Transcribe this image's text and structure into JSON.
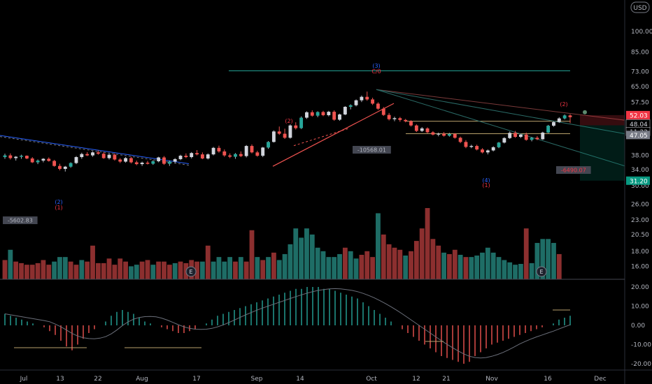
{
  "chart_data": [
    {
      "type": "candlestick",
      "currency": "USD",
      "x_ticks": [
        "Jul",
        "13",
        "22",
        "Aug",
        "17",
        "Sep",
        "14",
        "Oct",
        "12",
        "21",
        "Nov",
        "16",
        "Dec"
      ],
      "y_ticks": [
        "100.00",
        "85.00",
        "73.00",
        "65.00",
        "57.50",
        "48.04",
        "38.00",
        "34.00",
        "30.00",
        "26.00",
        "23.00",
        "20.50",
        "18.00",
        "16.00"
      ],
      "scale": "log",
      "price_labels": [
        {
          "text": "52.03",
          "color": "#f23645"
        },
        {
          "text": "48.04",
          "color": "#d1d4dc"
        },
        {
          "text": "11:22",
          "color": "#d1d4dc"
        },
        {
          "text": "47.05",
          "color": "#787b86"
        },
        {
          "text": "31.20",
          "color": "#089981"
        }
      ],
      "annotations": [
        {
          "text": "(2)",
          "color": "#2962ff"
        },
        {
          "text": "(1)",
          "color": "#f23645"
        },
        {
          "text": "(2)",
          "color": "#f23645"
        },
        {
          "text": "(3)",
          "color": "#2962ff"
        },
        {
          "text": "C/0",
          "color": "#f23645"
        },
        {
          "text": "(4)",
          "color": "#2962ff"
        },
        {
          "text": "(1)",
          "color": "#f23645"
        },
        {
          "text": "(2)",
          "color": "#f23645"
        }
      ],
      "measure_labels": [
        "-5602.83",
        "-10568.01",
        "-6490.07"
      ],
      "earnings_markers": [
        "E",
        "E"
      ],
      "candles": [
        [
          37.5,
          38.5,
          37.0,
          38.0
        ],
        [
          38.0,
          38.6,
          36.8,
          37.2
        ],
        [
          37.2,
          37.8,
          36.5,
          37.6
        ],
        [
          37.6,
          38.2,
          37.0,
          37.9
        ],
        [
          37.9,
          38.0,
          36.9,
          37.1
        ],
        [
          37.1,
          37.5,
          35.8,
          36.0
        ],
        [
          36.0,
          36.8,
          35.5,
          36.5
        ],
        [
          36.5,
          37.2,
          36.0,
          37.0
        ],
        [
          37.0,
          37.4,
          36.2,
          36.4
        ],
        [
          36.4,
          36.7,
          34.8,
          35.0
        ],
        [
          35.0,
          35.6,
          33.8,
          34.2
        ],
        [
          34.2,
          35.0,
          33.5,
          34.8
        ],
        [
          34.8,
          36.0,
          34.5,
          35.8
        ],
        [
          35.8,
          37.8,
          35.5,
          37.5
        ],
        [
          37.5,
          38.8,
          37.0,
          38.4
        ],
        [
          38.4,
          39.0,
          37.8,
          38.0
        ],
        [
          38.0,
          39.2,
          37.6,
          38.9
        ],
        [
          38.9,
          39.5,
          38.2,
          38.5
        ],
        [
          38.5,
          39.0,
          37.0,
          37.2
        ],
        [
          37.2,
          38.5,
          36.8,
          38.2
        ],
        [
          38.2,
          38.6,
          36.5,
          36.8
        ],
        [
          36.8,
          37.2,
          35.8,
          36.2
        ],
        [
          36.2,
          37.5,
          35.9,
          37.2
        ],
        [
          37.2,
          37.6,
          35.7,
          36.0
        ],
        [
          36.0,
          36.5,
          35.2,
          35.5
        ],
        [
          35.5,
          36.2,
          35.0,
          35.9
        ],
        [
          35.9,
          36.4,
          35.4,
          35.6
        ],
        [
          35.6,
          36.6,
          35.3,
          36.3
        ],
        [
          36.3,
          37.6,
          36.0,
          37.4
        ],
        [
          37.4,
          37.8,
          35.3,
          35.6
        ],
        [
          35.6,
          36.5,
          35.0,
          36.2
        ],
        [
          36.2,
          37.2,
          35.8,
          36.9
        ],
        [
          36.9,
          38.2,
          36.6,
          37.9
        ],
        [
          37.9,
          38.6,
          37.2,
          37.5
        ],
        [
          37.5,
          39.0,
          37.1,
          38.7
        ],
        [
          38.7,
          39.6,
          38.0,
          38.3
        ],
        [
          38.3,
          38.9,
          36.9,
          37.1
        ],
        [
          37.1,
          38.6,
          36.8,
          38.3
        ],
        [
          38.3,
          40.6,
          38.0,
          40.3
        ],
        [
          40.3,
          41.0,
          38.8,
          39.2
        ],
        [
          39.2,
          39.8,
          37.6,
          38.0
        ],
        [
          38.0,
          38.6,
          37.2,
          37.6
        ],
        [
          37.6,
          38.7,
          37.0,
          38.4
        ],
        [
          38.4,
          39.2,
          37.5,
          37.8
        ],
        [
          37.8,
          41.2,
          37.4,
          40.9
        ],
        [
          40.9,
          41.4,
          38.6,
          38.9
        ],
        [
          38.9,
          39.4,
          37.6,
          37.9
        ],
        [
          37.9,
          40.6,
          37.5,
          40.4
        ],
        [
          40.4,
          42.5,
          40.0,
          42.2
        ],
        [
          42.2,
          46.2,
          42.0,
          45.8
        ],
        [
          45.8,
          47.6,
          44.6,
          45.0
        ],
        [
          45.0,
          46.8,
          43.2,
          43.6
        ],
        [
          43.6,
          48.4,
          43.3,
          48.0
        ],
        [
          48.0,
          49.2,
          46.5,
          47.0
        ],
        [
          47.0,
          51.5,
          46.7,
          51.0
        ],
        [
          51.0,
          53.6,
          50.5,
          53.2
        ],
        [
          53.2,
          54.0,
          51.4,
          51.8
        ],
        [
          51.8,
          53.6,
          51.2,
          53.3
        ],
        [
          53.3,
          53.8,
          51.6,
          52.0
        ],
        [
          52.0,
          53.8,
          51.5,
          53.4
        ],
        [
          53.4,
          54.0,
          49.8,
          50.2
        ],
        [
          50.2,
          52.6,
          49.8,
          52.3
        ],
        [
          52.3,
          55.8,
          52.0,
          55.5
        ],
        [
          55.5,
          56.6,
          54.4,
          56.2
        ],
        [
          56.2,
          58.8,
          55.7,
          58.4
        ],
        [
          58.4,
          60.6,
          57.6,
          60.0
        ],
        [
          60.0,
          62.5,
          58.2,
          58.8
        ],
        [
          58.8,
          59.6,
          56.3,
          56.9
        ],
        [
          56.9,
          57.5,
          54.2,
          54.7
        ],
        [
          54.7,
          55.4,
          51.7,
          52.1
        ],
        [
          52.1,
          52.9,
          49.9,
          50.4
        ],
        [
          50.4,
          51.4,
          49.6,
          50.8
        ],
        [
          50.8,
          51.3,
          49.4,
          50.1
        ],
        [
          50.1,
          50.5,
          49.2,
          49.6
        ],
        [
          49.6,
          50.0,
          47.6,
          48.0
        ],
        [
          48.0,
          48.4,
          45.6,
          46.0
        ],
        [
          46.0,
          47.4,
          45.6,
          46.9
        ],
        [
          46.9,
          47.3,
          45.2,
          45.5
        ],
        [
          45.5,
          45.9,
          44.4,
          44.7
        ],
        [
          44.7,
          45.4,
          44.1,
          45.0
        ],
        [
          45.0,
          45.6,
          44.0,
          44.3
        ],
        [
          44.3,
          45.3,
          44.0,
          44.9
        ],
        [
          44.9,
          45.2,
          43.3,
          43.6
        ],
        [
          43.6,
          44.0,
          41.8,
          42.2
        ],
        [
          42.2,
          42.8,
          40.2,
          40.6
        ],
        [
          40.6,
          41.3,
          40.2,
          40.9
        ],
        [
          40.9,
          41.3,
          39.5,
          39.8
        ],
        [
          39.8,
          40.2,
          38.6,
          38.9
        ],
        [
          38.9,
          39.8,
          38.3,
          39.5
        ],
        [
          39.5,
          40.8,
          39.2,
          40.5
        ],
        [
          40.5,
          42.2,
          40.2,
          42.0
        ],
        [
          42.0,
          43.8,
          41.7,
          43.5
        ],
        [
          43.5,
          45.8,
          43.2,
          45.3
        ],
        [
          45.3,
          46.0,
          43.6,
          43.9
        ],
        [
          43.9,
          45.0,
          43.5,
          44.7
        ],
        [
          44.7,
          45.4,
          42.6,
          42.9
        ],
        [
          42.9,
          43.9,
          42.4,
          43.6
        ],
        [
          43.6,
          44.2,
          42.8,
          43.1
        ],
        [
          43.1,
          45.7,
          42.9,
          45.4
        ],
        [
          45.4,
          48.2,
          45.2,
          47.9
        ],
        [
          47.9,
          49.6,
          47.5,
          49.3
        ],
        [
          49.3,
          51.2,
          49.0,
          50.7
        ],
        [
          50.7,
          52.3,
          50.3,
          51.9
        ],
        [
          51.9,
          52.4,
          48.9,
          51.2
        ]
      ],
      "volume": [
        [
          16.8,
          "r"
        ],
        [
          18.2,
          "g"
        ],
        [
          16.6,
          "r"
        ],
        [
          16.4,
          "r"
        ],
        [
          16.2,
          "r"
        ],
        [
          16.2,
          "r"
        ],
        [
          16.4,
          "r"
        ],
        [
          16.8,
          "r"
        ],
        [
          16.2,
          "r"
        ],
        [
          16.6,
          "g"
        ],
        [
          17.2,
          "g"
        ],
        [
          17.2,
          "g"
        ],
        [
          16.6,
          "r"
        ],
        [
          16.2,
          "r"
        ],
        [
          16.8,
          "g"
        ],
        [
          16.6,
          "r"
        ],
        [
          18.8,
          "r"
        ],
        [
          16.4,
          "r"
        ],
        [
          16.4,
          "r"
        ],
        [
          17.0,
          "r"
        ],
        [
          16.2,
          "r"
        ],
        [
          17.0,
          "r"
        ],
        [
          16.6,
          "r"
        ],
        [
          16.0,
          "g"
        ],
        [
          16.2,
          "g"
        ],
        [
          16.6,
          "r"
        ],
        [
          16.8,
          "r"
        ],
        [
          16.2,
          "g"
        ],
        [
          16.6,
          "r"
        ],
        [
          16.6,
          "r"
        ],
        [
          16.2,
          "r"
        ],
        [
          16.4,
          "g"
        ],
        [
          16.6,
          "r"
        ],
        [
          16.4,
          "r"
        ],
        [
          16.8,
          "r"
        ],
        [
          16.6,
          "r"
        ],
        [
          16.6,
          "g"
        ],
        [
          18.8,
          "r"
        ],
        [
          16.6,
          "g"
        ],
        [
          17.2,
          "g"
        ],
        [
          16.6,
          "g"
        ],
        [
          17.2,
          "g"
        ],
        [
          16.6,
          "r"
        ],
        [
          17.2,
          "g"
        ],
        [
          16.6,
          "r"
        ],
        [
          21.2,
          "r"
        ],
        [
          17.2,
          "g"
        ],
        [
          16.8,
          "r"
        ],
        [
          17.2,
          "g"
        ],
        [
          17.8,
          "r"
        ],
        [
          16.8,
          "g"
        ],
        [
          17.6,
          "g"
        ],
        [
          19.0,
          "g"
        ],
        [
          21.5,
          "g"
        ],
        [
          20.0,
          "g"
        ],
        [
          21.5,
          "g"
        ],
        [
          20.5,
          "g"
        ],
        [
          18.5,
          "g"
        ],
        [
          18.0,
          "g"
        ],
        [
          17.2,
          "g"
        ],
        [
          17.2,
          "g"
        ],
        [
          17.6,
          "g"
        ],
        [
          18.5,
          "r"
        ],
        [
          18.0,
          "g"
        ],
        [
          17.0,
          "g"
        ],
        [
          17.5,
          "r"
        ],
        [
          18.0,
          "r"
        ],
        [
          17.2,
          "r"
        ],
        [
          24.2,
          "g"
        ],
        [
          20.5,
          "r"
        ],
        [
          19.0,
          "r"
        ],
        [
          18.5,
          "r"
        ],
        [
          18.2,
          "r"
        ],
        [
          17.4,
          "g"
        ],
        [
          18.0,
          "r"
        ],
        [
          19.5,
          "r"
        ],
        [
          21.5,
          "r"
        ],
        [
          25.2,
          "r"
        ],
        [
          19.8,
          "r"
        ],
        [
          18.8,
          "r"
        ],
        [
          17.8,
          "g"
        ],
        [
          17.6,
          "r"
        ],
        [
          18.2,
          "r"
        ],
        [
          17.5,
          "g"
        ],
        [
          17.2,
          "r"
        ],
        [
          17.2,
          "g"
        ],
        [
          17.4,
          "g"
        ],
        [
          17.8,
          "g"
        ],
        [
          18.5,
          "g"
        ],
        [
          17.8,
          "g"
        ],
        [
          17.2,
          "g"
        ],
        [
          16.8,
          "g"
        ],
        [
          16.5,
          "g"
        ],
        [
          16.2,
          "g"
        ],
        [
          16.3,
          "g"
        ],
        [
          21.5,
          "r"
        ],
        [
          16.4,
          "g"
        ],
        [
          19.2,
          "g"
        ],
        [
          19.8,
          "g"
        ],
        [
          19.8,
          "g"
        ],
        [
          19.2,
          "g"
        ],
        [
          17.6,
          "r"
        ]
      ],
      "histogram": [
        6,
        5,
        4,
        3,
        2,
        1,
        0,
        -1,
        -3,
        -5,
        -8,
        -11,
        -13,
        -10,
        -7,
        -4,
        -2,
        0,
        2,
        5,
        7,
        8,
        7,
        6,
        4,
        2,
        1,
        0,
        -1,
        -2,
        -3,
        -4,
        -4,
        -3,
        -2,
        0,
        1,
        3,
        5,
        6,
        7,
        8,
        9,
        10,
        11,
        12,
        13,
        14,
        15,
        16,
        17,
        18,
        19,
        19,
        20,
        20,
        20,
        19,
        19,
        18,
        17,
        16,
        15,
        14,
        12,
        10,
        8,
        6,
        4,
        2,
        0,
        -2,
        -4,
        -6,
        -8,
        -10,
        -12,
        -14,
        -16,
        -17,
        -18,
        -19,
        -20,
        -19,
        -16,
        -14,
        -12,
        -10,
        -9,
        -8,
        -7,
        -6,
        -5,
        -4,
        -3,
        -2,
        -1,
        0,
        1,
        3,
        4,
        5
      ],
      "histogram_ticks": [
        "20.00",
        "10.00",
        "0.00",
        "-10.00",
        "-20.00"
      ]
    }
  ]
}
